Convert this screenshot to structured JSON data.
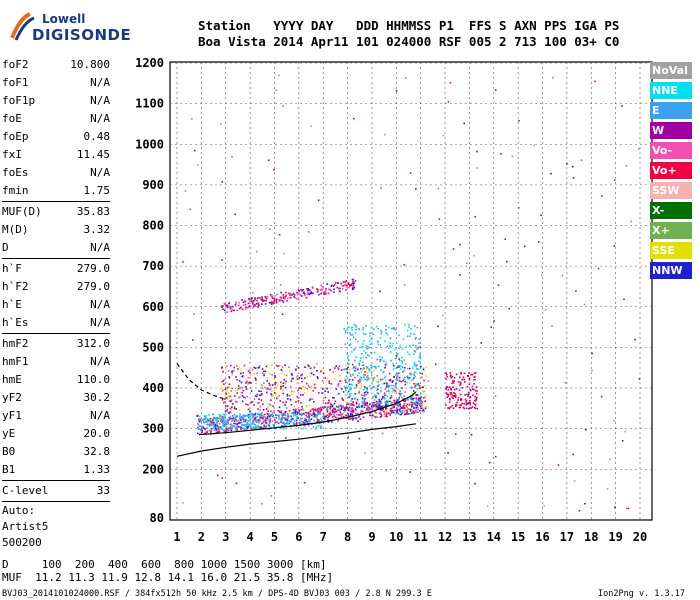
{
  "logo": {
    "line1": "Lowell",
    "line2": "DIGISONDE"
  },
  "header": {
    "line1": "Station   YYYY DAY   DDD HHMMSS P1  FFS S AXN PPS IGA PS",
    "line2": "Boa Vista 2014 Apr11 101 024000 RSF 005 2 713 100 03+ C0"
  },
  "params": {
    "group1": [
      {
        "name": "foF2",
        "value": "10.800"
      },
      {
        "name": "foF1",
        "value": "N/A"
      },
      {
        "name": "foF1p",
        "value": "N/A"
      },
      {
        "name": "foE",
        "value": "N/A"
      },
      {
        "name": "foEp",
        "value": "0.48"
      },
      {
        "name": "fxI",
        "value": "11.45"
      },
      {
        "name": "foEs",
        "value": "N/A"
      },
      {
        "name": "fmin",
        "value": "1.75"
      }
    ],
    "group2": [
      {
        "name": "MUF(D)",
        "value": "35.83"
      },
      {
        "name": "M(D)",
        "value": "3.32"
      },
      {
        "name": "D",
        "value": "N/A"
      }
    ],
    "group3": [
      {
        "name": "h`F",
        "value": "279.0"
      },
      {
        "name": "h`F2",
        "value": "279.0"
      },
      {
        "name": "h`E",
        "value": "N/A"
      },
      {
        "name": "h`Es",
        "value": "N/A"
      }
    ],
    "group4": [
      {
        "name": "hmF2",
        "value": "312.0"
      },
      {
        "name": "hmF1",
        "value": "N/A"
      },
      {
        "name": "hmE",
        "value": "110.0"
      },
      {
        "name": "yF2",
        "value": "30.2"
      },
      {
        "name": "yF1",
        "value": "N/A"
      },
      {
        "name": "yE",
        "value": "20.0"
      },
      {
        "name": "B0",
        "value": "32.8"
      },
      {
        "name": "B1",
        "value": "1.33"
      }
    ],
    "clevel": {
      "name": "C-level",
      "value": "33"
    },
    "auto": [
      "Auto:",
      "Artist5",
      "500200"
    ]
  },
  "legend": [
    {
      "label": "NoVal",
      "color": "#a0a0a0"
    },
    {
      "label": "NNE",
      "color": "#00e0f0"
    },
    {
      "label": "E",
      "color": "#3aa0f0"
    },
    {
      "label": "W",
      "color": "#a000a0"
    },
    {
      "label": "Vo-",
      "color": "#f050b0"
    },
    {
      "label": "Vo+",
      "color": "#f00040"
    },
    {
      "label": "SSW",
      "color": "#f8b0b0"
    },
    {
      "label": "X-",
      "color": "#007000"
    },
    {
      "label": "X+",
      "color": "#70b050"
    },
    {
      "label": "SSE",
      "color": "#e0e000"
    },
    {
      "label": "NNW",
      "color": "#2020d0"
    }
  ],
  "bottom": {
    "line1": "D     100  200  400  600  800 1000 1500 3000 [km]",
    "line2": "MUF  11.2 11.3 11.9 12.8 14.1 16.0 21.5 35.8 [MHz]"
  },
  "footer": {
    "left": "BVJ03_2014101024000.RSF / 384fx512h 50 kHz 2.5 km / DPS-4D BVJ03 003 / 2.8 N 299.3 E",
    "right": "Ion2Png v. 1.3.17"
  },
  "chart_data": {
    "type": "scatter",
    "xlim": [
      1,
      20
    ],
    "ylim": [
      80,
      1200
    ],
    "x_ticks": [
      1,
      2,
      3,
      4,
      5,
      6,
      7,
      8,
      9,
      10,
      11,
      12,
      13,
      14,
      15,
      16,
      17,
      18,
      19,
      20
    ],
    "y_ticks": [
      80,
      200,
      300,
      400,
      500,
      600,
      700,
      800,
      900,
      1000,
      1100,
      1200
    ],
    "grid": "dashed",
    "clusters": [
      {
        "name": "F2 trace",
        "x": [
          1.8,
          11.2
        ],
        "y": [
          280,
          350
        ],
        "n": 900,
        "colors": [
          "#f00040",
          "#a000a0",
          "#f050b0",
          "#2020d0",
          "#3aa0f0"
        ]
      },
      {
        "name": "upper F",
        "x": [
          2.8,
          11.2
        ],
        "y": [
          340,
          460
        ],
        "n": 650,
        "colors": [
          "#a000a0",
          "#f00040",
          "#f050b0",
          "#2020d0",
          "#e0e000"
        ]
      },
      {
        "name": "spread F NNE",
        "x": [
          7.8,
          11.0
        ],
        "y": [
          360,
          560
        ],
        "n": 350,
        "colors": [
          "#00e0f0",
          "#3aa0f0"
        ]
      },
      {
        "name": "low band",
        "x": [
          1.8,
          7.0
        ],
        "y": [
          300,
          340
        ],
        "n": 250,
        "colors": [
          "#00e0f0",
          "#3aa0f0"
        ]
      },
      {
        "name": "second hop",
        "x": [
          2.8,
          8.3
        ],
        "y": [
          580,
          670
        ],
        "n": 260,
        "colors": [
          "#a000a0",
          "#f00040",
          "#2020d0",
          "#f050b0"
        ]
      },
      {
        "name": "high freq cluster",
        "x": [
          12.0,
          13.3
        ],
        "y": [
          350,
          440
        ],
        "n": 150,
        "colors": [
          "#f00040",
          "#a000a0"
        ]
      },
      {
        "name": "background",
        "x": [
          1.2,
          20.0
        ],
        "y": [
          90,
          1190
        ],
        "n": 160,
        "colors": [
          "#a000a0",
          "#f00040",
          "#2020d0",
          "#007000",
          "#70b050",
          "#a0a0a0",
          "#f050b0"
        ]
      }
    ],
    "curves": [
      {
        "name": "model profile",
        "style": "solid",
        "x": [
          1.0,
          2.0,
          3.0,
          4.0,
          5.0,
          6.0,
          7.0,
          8.0,
          9.0,
          10.0,
          10.8
        ],
        "y": [
          232,
          245,
          254,
          262,
          268,
          274,
          282,
          289,
          298,
          305,
          312
        ]
      },
      {
        "name": "X trace",
        "style": "solid",
        "x": [
          1.9,
          3.0,
          4.0,
          5.0,
          6.0,
          7.0,
          8.0,
          9.0,
          10.0,
          10.6,
          10.8
        ],
        "y": [
          285,
          290,
          296,
          302,
          308,
          316,
          328,
          342,
          362,
          380,
          390
        ]
      },
      {
        "name": "O trace",
        "style": "dashed",
        "x": [
          1.0,
          1.5,
          2.0,
          2.5,
          3.0
        ],
        "y": [
          460,
          420,
          395,
          382,
          372
        ]
      }
    ]
  }
}
